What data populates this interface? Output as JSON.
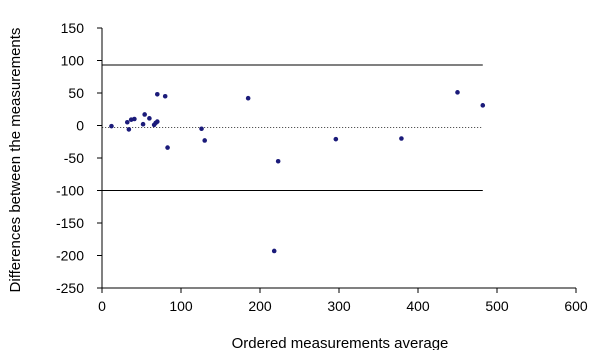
{
  "chart_data": {
    "type": "scatter",
    "title": "",
    "xlabel": "Ordered measurements average",
    "ylabel": "Differences between the measurements",
    "xlim": [
      0,
      600
    ],
    "ylim": [
      -250,
      150
    ],
    "xticks": [
      0,
      100,
      200,
      300,
      400,
      500,
      600
    ],
    "yticks": [
      150,
      100,
      50,
      0,
      -50,
      -100,
      -150,
      -200,
      -250
    ],
    "grid": false,
    "legend": "none",
    "marker_color": "#1b1b7a",
    "series": [
      {
        "points": [
          {
            "x": 12,
            "y": -1
          },
          {
            "x": 32,
            "y": 5
          },
          {
            "x": 34,
            "y": -6
          },
          {
            "x": 37,
            "y": 9
          },
          {
            "x": 41,
            "y": 10
          },
          {
            "x": 52,
            "y": 2
          },
          {
            "x": 54,
            "y": 17
          },
          {
            "x": 60,
            "y": 11
          },
          {
            "x": 66,
            "y": 1
          },
          {
            "x": 68,
            "y": 4
          },
          {
            "x": 70,
            "y": 6
          },
          {
            "x": 70,
            "y": 48
          },
          {
            "x": 80,
            "y": 45
          },
          {
            "x": 83,
            "y": -34
          },
          {
            "x": 126,
            "y": -5
          },
          {
            "x": 130,
            "y": -23
          },
          {
            "x": 185,
            "y": 42
          },
          {
            "x": 218,
            "y": -193
          },
          {
            "x": 223,
            "y": -55
          },
          {
            "x": 296,
            "y": -21
          },
          {
            "x": 379,
            "y": -20
          },
          {
            "x": 450,
            "y": 51
          },
          {
            "x": 482,
            "y": 31
          }
        ]
      }
    ],
    "reference_lines": [
      {
        "y": 93,
        "style": "solid"
      },
      {
        "y": -3,
        "style": "dotted"
      },
      {
        "y": -100,
        "style": "solid"
      }
    ],
    "reference_line_xrange": [
      0,
      482
    ]
  }
}
